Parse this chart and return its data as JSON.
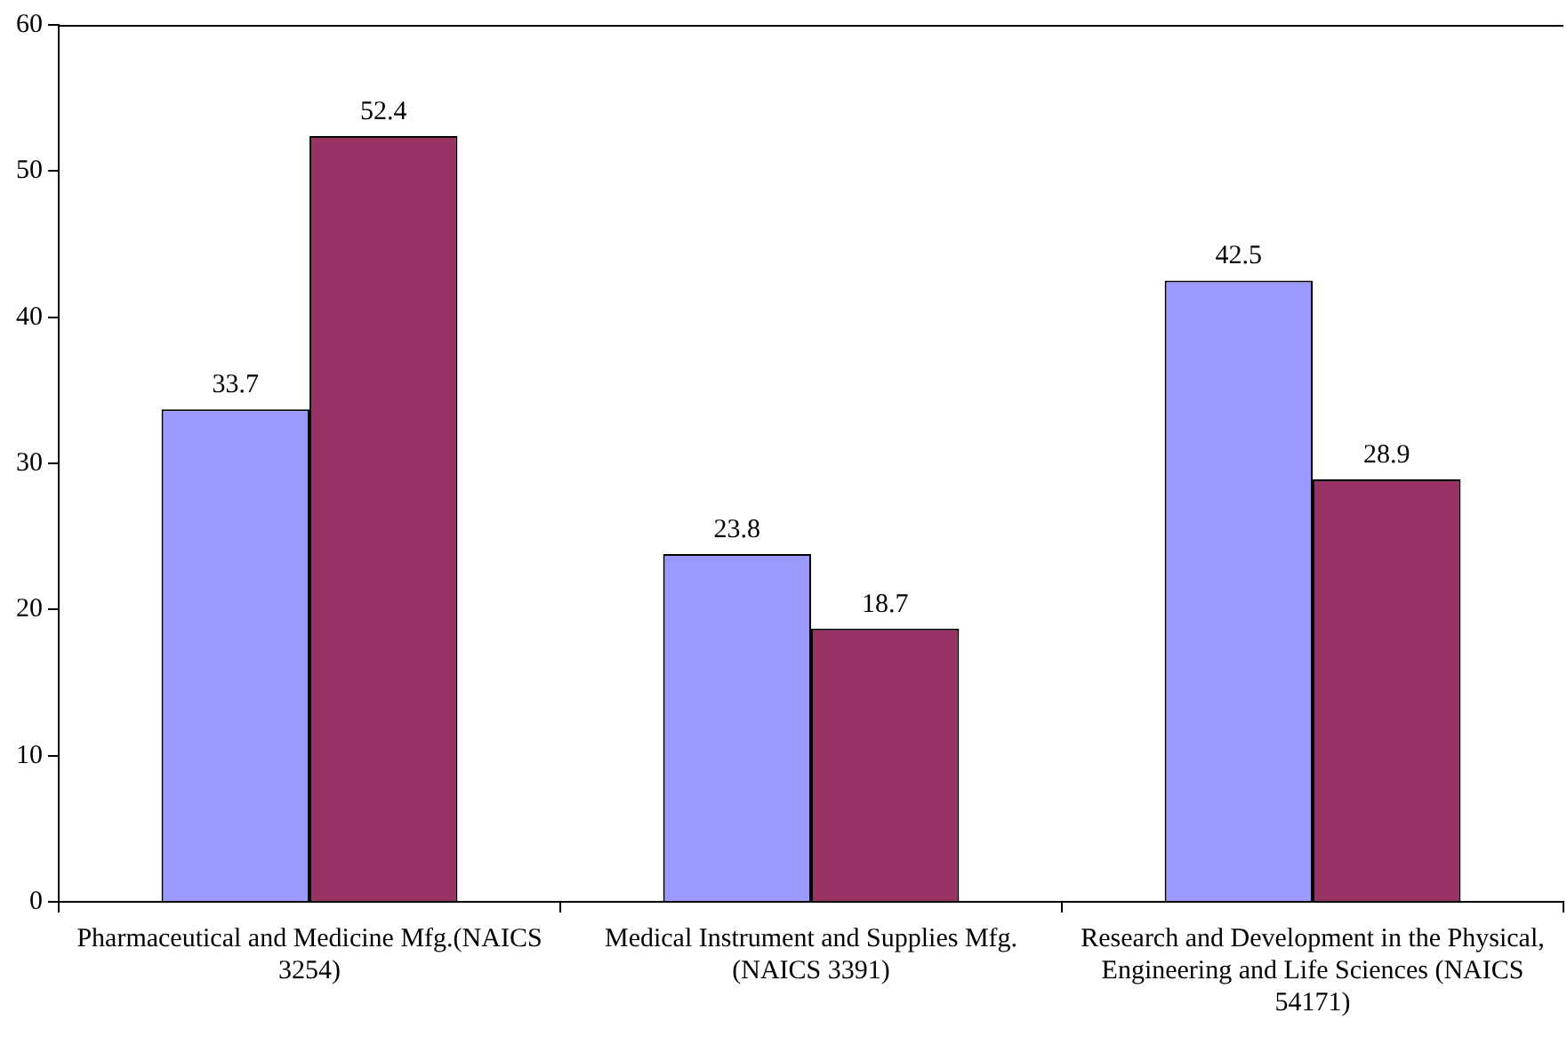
{
  "chart_data": {
    "type": "bar",
    "categories": [
      "Pharmaceutical and Medicine Mfg.(NAICS 3254)",
      "Medical Instrument and Supplies Mfg. (NAICS 3391)",
      "Research and Development in the Physical, Engineering and Life Sciences (NAICS 54171)"
    ],
    "series": [
      {
        "color": "#9999ff",
        "values": [
          33.7,
          23.8,
          42.5
        ]
      },
      {
        "color": "#993366",
        "values": [
          52.4,
          18.7,
          28.9
        ]
      }
    ],
    "ylim": [
      0,
      60
    ],
    "yticks": [
      0,
      10,
      20,
      30,
      40,
      50,
      60
    ],
    "data_labels": true,
    "grid": false,
    "legend": false
  }
}
